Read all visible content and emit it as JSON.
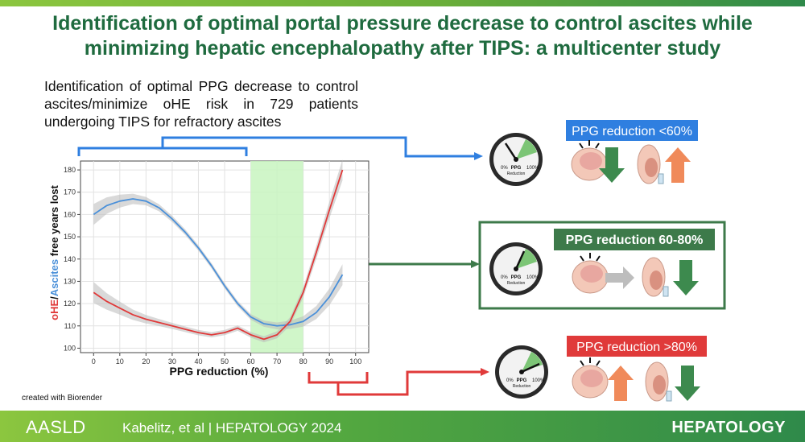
{
  "title_line1": "Identification of optimal portal pressure decrease to control ascites while",
  "title_line2": "minimizing hepatic encephalopathy after TIPS: a multicenter study",
  "description": "Identification of optimal PPG decrease to control ascites/minimize oHE risk in 729 patients undergoing TIPS for refractory ascites",
  "credit": "created with Biorender",
  "footer": {
    "society": "AASLD",
    "citation": "Kabelitz, et al  |  HEPATOLOGY 2024",
    "journal": "HEPATOLOGY"
  },
  "colors": {
    "title_green": "#1f6b3f",
    "blue": "#4a90d9",
    "red": "#e03a3a",
    "box_green": "#3d7a4a",
    "highlight": "#c8f5c0",
    "arrow_down": "#3d8a4e",
    "arrow_up": "#f08a5a"
  },
  "chart_data": {
    "type": "line",
    "xlabel": "PPG reduction (%)",
    "ylabel_parts": [
      "oHE",
      "/",
      "Ascites",
      " free years lost"
    ],
    "xlim": [
      -5,
      105
    ],
    "ylim": [
      98,
      184
    ],
    "x_ticks": [
      0,
      10,
      20,
      30,
      40,
      50,
      60,
      70,
      80,
      90,
      100
    ],
    "y_ticks": [
      100,
      110,
      120,
      130,
      140,
      150,
      160,
      170,
      180
    ],
    "highlight_range": [
      60,
      80
    ],
    "grid": true,
    "series": [
      {
        "name": "Ascites",
        "color": "#4a90d9",
        "points": [
          [
            0,
            160
          ],
          [
            5,
            164
          ],
          [
            10,
            166
          ],
          [
            15,
            167
          ],
          [
            20,
            166
          ],
          [
            25,
            163
          ],
          [
            30,
            158
          ],
          [
            35,
            152
          ],
          [
            40,
            145
          ],
          [
            45,
            137
          ],
          [
            50,
            128
          ],
          [
            55,
            120
          ],
          [
            60,
            114
          ],
          [
            65,
            111
          ],
          [
            70,
            110
          ],
          [
            75,
            110.5
          ],
          [
            80,
            112
          ],
          [
            85,
            116
          ],
          [
            90,
            123
          ],
          [
            95,
            133
          ]
        ]
      },
      {
        "name": "oHE",
        "color": "#e03a3a",
        "points": [
          [
            0,
            125
          ],
          [
            5,
            121
          ],
          [
            10,
            118
          ],
          [
            15,
            115
          ],
          [
            20,
            113
          ],
          [
            25,
            111.5
          ],
          [
            30,
            110
          ],
          [
            35,
            108.5
          ],
          [
            40,
            107
          ],
          [
            45,
            106
          ],
          [
            50,
            107
          ],
          [
            55,
            109
          ],
          [
            60,
            106
          ],
          [
            65,
            104
          ],
          [
            70,
            106
          ],
          [
            75,
            112
          ],
          [
            80,
            125
          ],
          [
            85,
            143
          ],
          [
            90,
            162
          ],
          [
            95,
            180
          ]
        ]
      }
    ]
  },
  "panels": [
    {
      "label": "PPG reduction <60%",
      "label_color": "#2f7fe0",
      "gauge_text": "PPG",
      "gauge_sub": "Reduction",
      "gauge_min": "0%",
      "gauge_max": "100%",
      "brain_arrow": "down",
      "ascites_arrow": "up"
    },
    {
      "label": "PPG reduction 60-80%",
      "label_color": "#3d7a4a",
      "gauge_text": "PPG",
      "gauge_sub": "Reduction",
      "gauge_min": "0%",
      "gauge_max": "100%",
      "brain_arrow": "right",
      "ascites_arrow": "down"
    },
    {
      "label": "PPG reduction >80%",
      "label_color": "#e03a3a",
      "gauge_text": "PPG",
      "gauge_sub": "Reduction",
      "gauge_min": "0%",
      "gauge_max": "100%",
      "brain_arrow": "up",
      "ascites_arrow": "down"
    }
  ]
}
